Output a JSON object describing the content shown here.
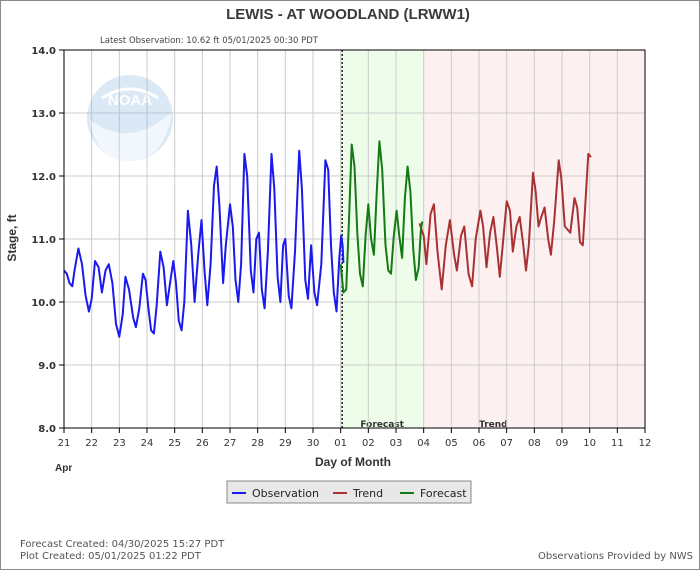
{
  "chart_data": {
    "type": "line",
    "title": "LEWIS - AT WOODLAND  (LRWW1)",
    "subtitle": "Latest Observation: 10.62 ft 05/01/2025 00:30 PDT",
    "xlabel": "Day of Month",
    "ylabel": "Stage, ft",
    "month_label": "Apr",
    "xlim": [
      0,
      21
    ],
    "ylim": [
      8.0,
      14.0
    ],
    "x_ticks": [
      "21",
      "22",
      "23",
      "24",
      "25",
      "26",
      "27",
      "28",
      "29",
      "30",
      "01",
      "02",
      "03",
      "04",
      "05",
      "06",
      "07",
      "08",
      "09",
      "10",
      "11",
      "12"
    ],
    "y_ticks": [
      "8.0",
      "9.0",
      "10.0",
      "11.0",
      "12.0",
      "13.0",
      "14.0"
    ],
    "grid": true,
    "regions": [
      {
        "name": "Forecast",
        "from": 10,
        "to": 13,
        "color": "#eefcea"
      },
      {
        "name": "Trend",
        "from": 13,
        "to": 21,
        "color": "#fdf0f0"
      }
    ],
    "series": [
      {
        "name": "Observation",
        "color": "#1a1aee",
        "points": [
          [
            0,
            10.5
          ],
          [
            0.1,
            10.45
          ],
          [
            0.2,
            10.3
          ],
          [
            0.3,
            10.25
          ],
          [
            0.38,
            10.5
          ],
          [
            0.52,
            10.85
          ],
          [
            0.65,
            10.6
          ],
          [
            0.78,
            10.1
          ],
          [
            0.9,
            9.85
          ],
          [
            1.0,
            10.05
          ],
          [
            1.12,
            10.65
          ],
          [
            1.25,
            10.55
          ],
          [
            1.37,
            10.15
          ],
          [
            1.5,
            10.5
          ],
          [
            1.62,
            10.6
          ],
          [
            1.75,
            10.3
          ],
          [
            1.88,
            9.65
          ],
          [
            2.0,
            9.45
          ],
          [
            2.12,
            9.8
          ],
          [
            2.22,
            10.4
          ],
          [
            2.35,
            10.2
          ],
          [
            2.5,
            9.75
          ],
          [
            2.6,
            9.6
          ],
          [
            2.72,
            9.9
          ],
          [
            2.85,
            10.45
          ],
          [
            2.95,
            10.35
          ],
          [
            3.05,
            9.9
          ],
          [
            3.15,
            9.55
          ],
          [
            3.25,
            9.5
          ],
          [
            3.35,
            9.95
          ],
          [
            3.48,
            10.8
          ],
          [
            3.6,
            10.55
          ],
          [
            3.72,
            9.95
          ],
          [
            3.85,
            10.35
          ],
          [
            3.95,
            10.65
          ],
          [
            4.05,
            10.3
          ],
          [
            4.15,
            9.7
          ],
          [
            4.25,
            9.55
          ],
          [
            4.35,
            10.0
          ],
          [
            4.48,
            11.45
          ],
          [
            4.6,
            10.9
          ],
          [
            4.72,
            10.0
          ],
          [
            4.85,
            10.75
          ],
          [
            4.97,
            11.3
          ],
          [
            5.08,
            10.5
          ],
          [
            5.18,
            9.95
          ],
          [
            5.3,
            10.6
          ],
          [
            5.42,
            11.85
          ],
          [
            5.52,
            12.15
          ],
          [
            5.62,
            11.5
          ],
          [
            5.75,
            10.3
          ],
          [
            5.85,
            10.9
          ],
          [
            6.0,
            11.55
          ],
          [
            6.1,
            11.2
          ],
          [
            6.2,
            10.35
          ],
          [
            6.3,
            10.0
          ],
          [
            6.4,
            10.6
          ],
          [
            6.52,
            12.35
          ],
          [
            6.62,
            12.0
          ],
          [
            6.75,
            10.5
          ],
          [
            6.85,
            10.15
          ],
          [
            6.95,
            11.0
          ],
          [
            7.05,
            11.1
          ],
          [
            7.15,
            10.2
          ],
          [
            7.25,
            9.9
          ],
          [
            7.37,
            10.8
          ],
          [
            7.5,
            12.35
          ],
          [
            7.6,
            11.8
          ],
          [
            7.72,
            10.4
          ],
          [
            7.82,
            10.0
          ],
          [
            7.92,
            10.9
          ],
          [
            8.0,
            11.0
          ],
          [
            8.12,
            10.1
          ],
          [
            8.22,
            9.9
          ],
          [
            8.35,
            10.8
          ],
          [
            8.5,
            12.4
          ],
          [
            8.6,
            11.8
          ],
          [
            8.72,
            10.35
          ],
          [
            8.82,
            10.05
          ],
          [
            8.93,
            10.9
          ],
          [
            9.05,
            10.15
          ],
          [
            9.15,
            9.95
          ],
          [
            9.3,
            10.6
          ],
          [
            9.45,
            12.25
          ],
          [
            9.55,
            12.1
          ],
          [
            9.65,
            10.9
          ],
          [
            9.75,
            10.15
          ],
          [
            9.85,
            9.85
          ],
          [
            9.95,
            10.7
          ],
          [
            10.02,
            11.05
          ],
          [
            10.07,
            10.9
          ],
          [
            10.1,
            10.62
          ]
        ]
      },
      {
        "name": "Trend",
        "color": "#a83232",
        "points": [
          [
            12.85,
            11.25
          ],
          [
            13.0,
            11.05
          ],
          [
            13.1,
            10.6
          ],
          [
            13.25,
            11.4
          ],
          [
            13.37,
            11.55
          ],
          [
            13.5,
            10.8
          ],
          [
            13.65,
            10.2
          ],
          [
            13.8,
            10.9
          ],
          [
            13.95,
            11.3
          ],
          [
            14.1,
            10.75
          ],
          [
            14.2,
            10.5
          ],
          [
            14.35,
            11.05
          ],
          [
            14.47,
            11.2
          ],
          [
            14.62,
            10.45
          ],
          [
            14.75,
            10.25
          ],
          [
            14.88,
            11.0
          ],
          [
            15.05,
            11.45
          ],
          [
            15.15,
            11.2
          ],
          [
            15.27,
            10.55
          ],
          [
            15.4,
            11.1
          ],
          [
            15.52,
            11.35
          ],
          [
            15.65,
            10.85
          ],
          [
            15.75,
            10.4
          ],
          [
            15.88,
            11.0
          ],
          [
            16.0,
            11.6
          ],
          [
            16.12,
            11.45
          ],
          [
            16.22,
            10.8
          ],
          [
            16.35,
            11.2
          ],
          [
            16.47,
            11.35
          ],
          [
            16.6,
            10.9
          ],
          [
            16.7,
            10.5
          ],
          [
            16.8,
            10.9
          ],
          [
            16.95,
            12.05
          ],
          [
            17.05,
            11.75
          ],
          [
            17.15,
            11.2
          ],
          [
            17.25,
            11.35
          ],
          [
            17.37,
            11.5
          ],
          [
            17.5,
            11.0
          ],
          [
            17.6,
            10.75
          ],
          [
            17.72,
            11.3
          ],
          [
            17.88,
            12.25
          ],
          [
            17.98,
            11.95
          ],
          [
            18.1,
            11.2
          ],
          [
            18.2,
            11.15
          ],
          [
            18.3,
            11.1
          ],
          [
            18.45,
            11.65
          ],
          [
            18.55,
            11.5
          ],
          [
            18.65,
            10.95
          ],
          [
            18.75,
            10.9
          ],
          [
            18.85,
            11.6
          ],
          [
            18.95,
            12.35
          ],
          [
            19.05,
            12.3
          ]
        ]
      },
      {
        "name": "Forecast",
        "color": "#157a15",
        "points": [
          [
            10.0,
            10.6
          ],
          [
            10.1,
            10.15
          ],
          [
            10.2,
            10.2
          ],
          [
            10.3,
            11.3
          ],
          [
            10.4,
            12.5
          ],
          [
            10.5,
            12.15
          ],
          [
            10.6,
            11.1
          ],
          [
            10.7,
            10.45
          ],
          [
            10.8,
            10.25
          ],
          [
            10.9,
            11.05
          ],
          [
            11.0,
            11.55
          ],
          [
            11.1,
            11.0
          ],
          [
            11.2,
            10.75
          ],
          [
            11.3,
            11.7
          ],
          [
            11.4,
            12.55
          ],
          [
            11.5,
            12.1
          ],
          [
            11.62,
            10.9
          ],
          [
            11.72,
            10.5
          ],
          [
            11.82,
            10.45
          ],
          [
            11.92,
            11.05
          ],
          [
            12.02,
            11.45
          ],
          [
            12.12,
            11.05
          ],
          [
            12.22,
            10.7
          ],
          [
            12.32,
            11.65
          ],
          [
            12.42,
            12.15
          ],
          [
            12.52,
            11.75
          ],
          [
            12.62,
            10.85
          ],
          [
            12.72,
            10.35
          ],
          [
            12.82,
            10.55
          ],
          [
            12.9,
            11.15
          ],
          [
            12.95,
            11.28
          ]
        ]
      }
    ],
    "legend": {
      "placement": "bottom-center",
      "entries": [
        "Observation",
        "Trend",
        "Forecast"
      ]
    },
    "colors": {
      "plot_bg": "#ffffff",
      "grid": "#cccccc",
      "frame": "#000000",
      "now_line": "#000000"
    }
  },
  "footer": {
    "forecast_created": "Forecast Created: 04/30/2025 15:27 PDT",
    "plot_created": "Plot Created: 05/01/2025 01:22 PDT",
    "credit": "Observations Provided by NWS"
  },
  "logo": {
    "text": "NOAA",
    "icon": "noaa-logo-icon"
  }
}
